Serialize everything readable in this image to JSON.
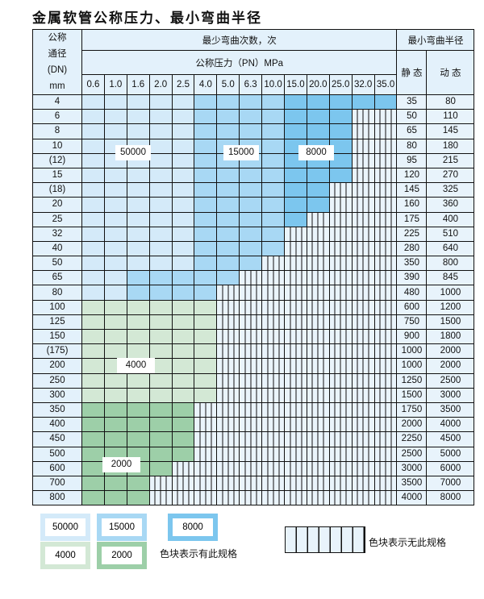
{
  "title": "金属软管公称压力、最小弯曲半径",
  "header": {
    "dn_label": [
      "公称",
      "通径",
      "(DN)",
      "mm"
    ],
    "cycles_label": "最少弯曲次数，次",
    "pressure_label": "公称压力（PN）MPa",
    "radius_label": "最小弯曲半径",
    "static_label": "静 态",
    "dynamic_label": "动 态",
    "pressures": [
      "0.6",
      "1.0",
      "1.6",
      "2.0",
      "2.5",
      "4.0",
      "5.0",
      "6.3",
      "10.0",
      "15.0",
      "20.0",
      "25.0",
      "32.0",
      "35.0"
    ]
  },
  "zones": {
    "A": {
      "cycles": "50000",
      "color": "#d4eaf9"
    },
    "B": {
      "cycles": "15000",
      "color": "#a8d8f4"
    },
    "C": {
      "cycles": "8000",
      "color": "#7cc6ee"
    },
    "D": {
      "cycles": "4000",
      "color": "#d3e8d5"
    },
    "E": {
      "cycles": "2000",
      "color": "#9dcfa8"
    }
  },
  "rows": [
    {
      "dn": "4",
      "static": "35",
      "dynamic": "80",
      "cells": "AAAAABBBBCCCCC"
    },
    {
      "dn": "6",
      "static": "50",
      "dynamic": "110",
      "cells": "AAAAABBBBCCC"
    },
    {
      "dn": "8",
      "static": "65",
      "dynamic": "145",
      "cells": "AAAAABBBBCCC"
    },
    {
      "dn": "10",
      "static": "80",
      "dynamic": "180",
      "cells": "AAAAABBBBCCC"
    },
    {
      "dn": "(12)",
      "static": "95",
      "dynamic": "215",
      "cells": "AAAAABBBBCCC"
    },
    {
      "dn": "15",
      "static": "120",
      "dynamic": "270",
      "cells": "AAAAABBBBCCC"
    },
    {
      "dn": "(18)",
      "static": "145",
      "dynamic": "325",
      "cells": "AAAAABBBBCC"
    },
    {
      "dn": "20",
      "static": "160",
      "dynamic": "360",
      "cells": "AAAAABBBBCC"
    },
    {
      "dn": "25",
      "static": "175",
      "dynamic": "400",
      "cells": "AAAAABBBBC"
    },
    {
      "dn": "32",
      "static": "225",
      "dynamic": "510",
      "cells": "AAAAABBBB"
    },
    {
      "dn": "40",
      "static": "280",
      "dynamic": "640",
      "cells": "AAAAABBBB"
    },
    {
      "dn": "50",
      "static": "350",
      "dynamic": "800",
      "cells": "AAAAABBB"
    },
    {
      "dn": "65",
      "static": "390",
      "dynamic": "845",
      "cells": "AABBBBB"
    },
    {
      "dn": "80",
      "static": "480",
      "dynamic": "1000",
      "cells": "AABBBB"
    },
    {
      "dn": "100",
      "static": "600",
      "dynamic": "1200",
      "cells": "DDDDDD"
    },
    {
      "dn": "125",
      "static": "750",
      "dynamic": "1500",
      "cells": "DDDDDD"
    },
    {
      "dn": "150",
      "static": "900",
      "dynamic": "1800",
      "cells": "DDDDDD"
    },
    {
      "dn": "(175)",
      "static": "1000",
      "dynamic": "2000",
      "cells": "DDDDDD"
    },
    {
      "dn": "200",
      "static": "1000",
      "dynamic": "2000",
      "cells": "DDDDDD"
    },
    {
      "dn": "250",
      "static": "1250",
      "dynamic": "2500",
      "cells": "DDDDDD"
    },
    {
      "dn": "300",
      "static": "1500",
      "dynamic": "3000",
      "cells": "DDDDDD"
    },
    {
      "dn": "350",
      "static": "1750",
      "dynamic": "3500",
      "cells": "EEEEE"
    },
    {
      "dn": "400",
      "static": "2000",
      "dynamic": "4000",
      "cells": "EEEEE"
    },
    {
      "dn": "450",
      "static": "2250",
      "dynamic": "4500",
      "cells": "EEEEE"
    },
    {
      "dn": "500",
      "static": "2500",
      "dynamic": "5000",
      "cells": "EEEEE"
    },
    {
      "dn": "600",
      "static": "3000",
      "dynamic": "6000",
      "cells": "EEEE"
    },
    {
      "dn": "700",
      "static": "3500",
      "dynamic": "7000",
      "cells": "EEE"
    },
    {
      "dn": "800",
      "static": "4000",
      "dynamic": "8000",
      "cells": "EEE"
    }
  ],
  "legend": {
    "available_text": "色块表示有此规格",
    "unavailable_text": "色块表示无此规格"
  }
}
